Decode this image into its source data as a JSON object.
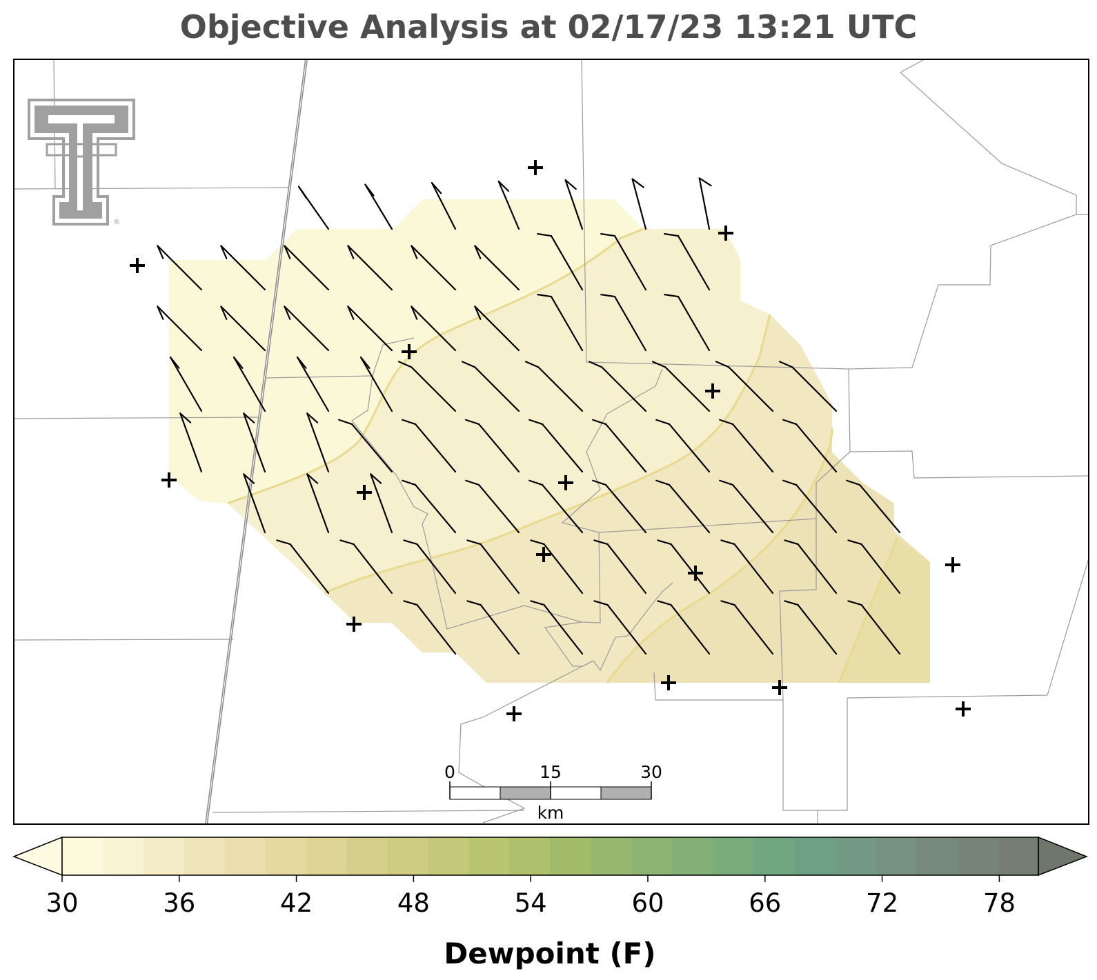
{
  "title": "Objective Analysis at 02/17/23 13:21 UTC",
  "logo": {
    "name": "texas-tech-double-t-logo",
    "registered_mark": "®"
  },
  "map": {
    "shaded_field": "Dewpoint (F)",
    "field_colors": {
      "light": "#fbf8d8",
      "mid_light": "#f6f0cf",
      "mid": "#f1e8c2",
      "mid_dark": "#ede2b5",
      "dark": "#e8dea8",
      "contour": "#e9d98e"
    },
    "border_color": "#9a9a9a",
    "highway_color": "#8a8a8a",
    "station_marker": "+",
    "barb_color": "#000000"
  },
  "scale_bar": {
    "labels": [
      "0",
      "15",
      "30"
    ],
    "unit": "km"
  },
  "colorbar": {
    "label": "Dewpoint (F)",
    "ticks": [
      "30",
      "36",
      "42",
      "48",
      "54",
      "60",
      "66",
      "72",
      "78"
    ],
    "colors": [
      "#fdf9dc",
      "#f8f3d2",
      "#f4ecc6",
      "#efe5ba",
      "#ebdeae",
      "#e5d99f",
      "#ddd495",
      "#d5cf8b",
      "#cdcc82",
      "#c4c879",
      "#b9c571",
      "#aec06c",
      "#a3bc6b",
      "#98b76e",
      "#8db372",
      "#83af77",
      "#79ab7c",
      "#70a680",
      "#6fa085",
      "#739a84",
      "#779281",
      "#788a7c",
      "#778478",
      "#767e73"
    ],
    "extend_low_color": "#fefbe3",
    "extend_high_color": "#6f776c"
  }
}
